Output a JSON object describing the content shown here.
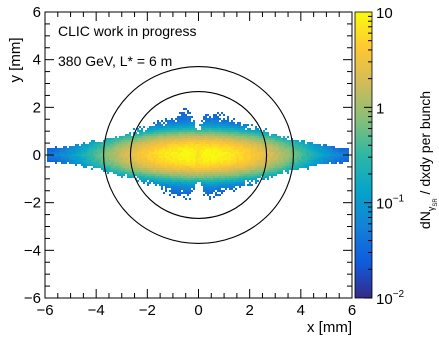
{
  "chart_data": {
    "type": "heatmap",
    "annotations": [
      "CLIC work in progress",
      "380 GeV, L* = 6 m"
    ],
    "xlabel": "x [mm]",
    "ylabel": "y [mm]",
    "colorbar_label_main": "dN",
    "colorbar_label_sub": "γ",
    "colorbar_label_subsub": "SR",
    "colorbar_label_rest": " / dxdy per bunch",
    "xlim": [
      -6,
      6
    ],
    "ylim": [
      -6,
      6
    ],
    "x_ticks": [
      -6,
      -4,
      -2,
      0,
      2,
      4,
      6
    ],
    "y_ticks": [
      -6,
      -4,
      -2,
      0,
      2,
      4,
      6
    ],
    "x_tick_labels": [
      "−6",
      "−4",
      "−2",
      "0",
      "2",
      "4",
      "6"
    ],
    "y_tick_labels": [
      "−6",
      "−4",
      "−2",
      "0",
      "2",
      "4",
      "6"
    ],
    "z_scale": "log",
    "zlim": [
      0.01,
      10
    ],
    "colorbar_ticks": [
      {
        "value": 10,
        "base": "10",
        "exp": ""
      },
      {
        "value": 1,
        "base": "1",
        "exp": ""
      },
      {
        "value": 0.1,
        "base": "10",
        "exp": "−1"
      },
      {
        "value": 0.01,
        "base": "10",
        "exp": "−2"
      }
    ],
    "circles": [
      {
        "cx": 0,
        "cy": 0,
        "r": 2.66
      },
      {
        "cx": 0,
        "cy": 0,
        "r": 3.71
      }
    ],
    "distribution": {
      "center": [
        0,
        0
      ],
      "x_extent": [
        -5.9,
        5.9
      ],
      "y_extent_center": 2.0,
      "y_extent_edge": 0.3,
      "peak_density": 10,
      "central_dip_x": 0
    },
    "colormap": [
      "#352a87",
      "#0f5cdd",
      "#1481d6",
      "#06a4ca",
      "#2eb7a4",
      "#87bf77",
      "#d1bb59",
      "#fec832",
      "#f9fb0e"
    ]
  }
}
